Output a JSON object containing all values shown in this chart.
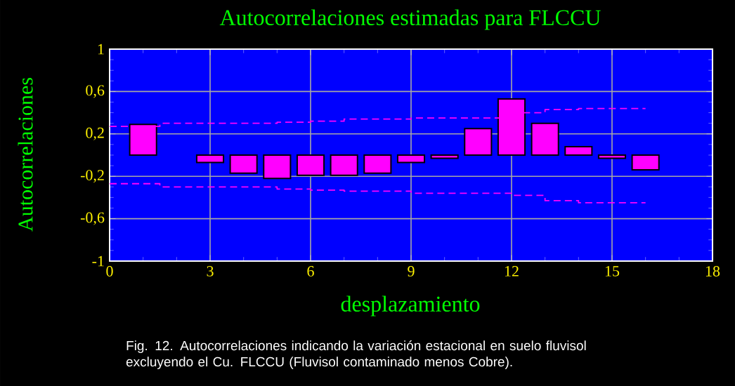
{
  "chart_data": {
    "type": "bar",
    "title": "Autocorrelaciones estimadas para FLCCU",
    "xlabel": "desplazamiento",
    "ylabel": "Autocorrelaciones",
    "annotations": [
      "Fig. 12. Autocorrelaciones indicando la variación estacional en suelo fluvisol excluyendo el Cu. FLCCU (Fluvisol contaminado menos Cobre)."
    ],
    "xlim": [
      0,
      18
    ],
    "xticks": [
      0,
      3,
      6,
      9,
      12,
      15,
      18
    ],
    "ylim": [
      -1,
      1
    ],
    "yticks": [
      {
        "value": -1,
        "label": "-1"
      },
      {
        "value": -0.6,
        "label": "-0,6"
      },
      {
        "value": -0.2,
        "label": "-0,2"
      },
      {
        "value": 0.2,
        "label": "0,2"
      },
      {
        "value": 0.6,
        "label": "0,6"
      },
      {
        "value": 1,
        "label": "1"
      }
    ],
    "grid": true,
    "series": [
      {
        "color": "#ff00ff",
        "x": [
          1,
          3,
          4,
          5,
          6,
          7,
          8,
          9,
          10,
          11,
          12,
          13,
          14,
          15,
          16
        ],
        "values": [
          0.29,
          -0.07,
          -0.17,
          -0.22,
          -0.19,
          -0.19,
          -0.17,
          -0.07,
          -0.03,
          0.25,
          0.53,
          0.3,
          0.08,
          -0.03,
          -0.14
        ]
      },
      {
        "type": "step",
        "color": "#ff00ff",
        "line_style": "dashed",
        "x": [
          0,
          1.5,
          2,
          3,
          4,
          5,
          6,
          7,
          8,
          9,
          10,
          11,
          12,
          13,
          14,
          15,
          16
        ],
        "values": [
          0.27,
          0.3,
          0.3,
          0.3,
          0.3,
          0.31,
          0.32,
          0.34,
          0.34,
          0.35,
          0.35,
          0.35,
          0.4,
          0.43,
          0.44,
          0.44,
          0.44
        ]
      },
      {
        "type": "step",
        "color": "#ff00ff",
        "line_style": "dashed",
        "x": [
          0,
          1.5,
          2,
          3,
          4,
          5,
          6,
          7,
          8,
          9,
          10,
          11,
          12,
          13,
          14,
          15,
          16
        ],
        "values": [
          -0.27,
          -0.3,
          -0.3,
          -0.3,
          -0.3,
          -0.32,
          -0.33,
          -0.34,
          -0.34,
          -0.36,
          -0.36,
          -0.36,
          -0.38,
          -0.43,
          -0.45,
          -0.45,
          -0.45
        ]
      }
    ]
  }
}
